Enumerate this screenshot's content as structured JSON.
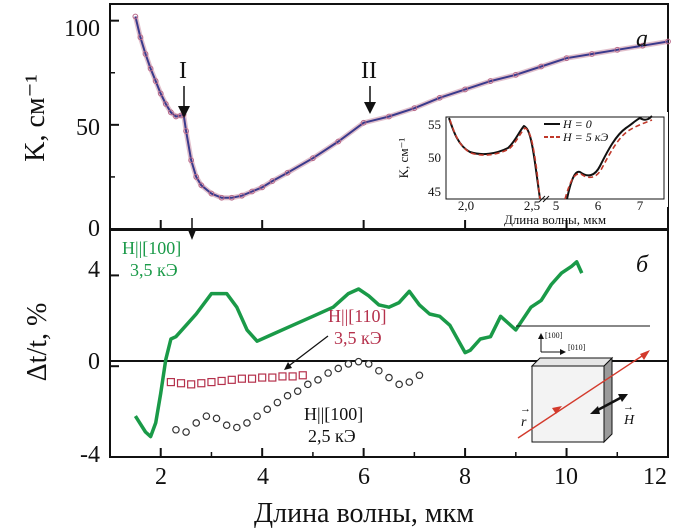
{
  "chart_data": [
    {
      "panel": "a",
      "type": "line",
      "ylabel": "K, см⁻¹",
      "xlim": [
        1,
        12
      ],
      "ylim": [
        0,
        108
      ],
      "yticks": [
        0,
        50,
        100
      ],
      "markers": [
        "I",
        "II"
      ],
      "marker_x": [
        2.45,
        6.05
      ],
      "series": [
        {
          "color": "#3a3a8c",
          "x": [
            1.5,
            1.6,
            1.7,
            1.8,
            1.9,
            2.0,
            2.1,
            2.2,
            2.3,
            2.4,
            2.45,
            2.5,
            2.6,
            2.7,
            2.8,
            3.0,
            3.2,
            3.4,
            3.6,
            3.8,
            4.0,
            4.2,
            4.5,
            5.0,
            5.5,
            6.0,
            6.5,
            7.0,
            7.5,
            8.0,
            8.5,
            9.0,
            9.5,
            10.0,
            10.5,
            11.0,
            11.5,
            12.0
          ],
          "y": [
            102,
            92,
            84,
            77,
            71,
            65,
            60,
            56,
            54,
            54.5,
            55,
            47,
            33,
            25,
            21,
            17,
            15,
            15,
            16,
            18,
            20,
            23,
            27,
            34,
            42,
            51,
            54,
            58,
            63,
            67,
            71,
            74,
            78,
            82,
            84,
            86,
            88,
            90
          ]
        }
      ]
    },
    {
      "panel": "b",
      "type": "line",
      "xlabel": "Длина волны, мкм",
      "ylabel": "Δt/t, %",
      "xlim": [
        1,
        12
      ],
      "ylim": [
        -4,
        6
      ],
      "xticks": [
        2,
        4,
        6,
        8,
        10,
        12
      ],
      "yticks": [
        -4,
        0,
        4
      ],
      "series": [
        {
          "name": "H||[100] 3,5 кЭ",
          "color": "#1a9a48",
          "x": [
            1.5,
            1.7,
            1.8,
            1.9,
            2.0,
            2.1,
            2.2,
            2.3,
            2.5,
            2.7,
            3.0,
            3.3,
            3.5,
            3.7,
            3.9,
            4.2,
            4.6,
            5.0,
            5.4,
            5.7,
            5.9,
            6.1,
            6.3,
            6.5,
            6.7,
            6.9,
            7.1,
            7.3,
            7.5,
            7.7,
            7.9,
            8.0,
            8.1,
            8.3,
            8.5,
            8.7,
            9.0,
            9.3,
            9.5,
            9.7,
            9.9,
            10.1,
            10.2,
            10.3
          ],
          "y": [
            -2.2,
            -2.9,
            -3.1,
            -2.5,
            -1.2,
            0.3,
            1.2,
            1.3,
            1.8,
            2.3,
            3.2,
            3.2,
            2.6,
            1.6,
            1.1,
            1.4,
            1.8,
            2.2,
            2.6,
            3.2,
            3.4,
            3.1,
            2.7,
            2.6,
            2.8,
            3.3,
            2.7,
            2.3,
            2.2,
            1.8,
            1.0,
            0.6,
            0.7,
            1.2,
            1.3,
            2.2,
            1.6,
            2.6,
            2.9,
            3.6,
            4.1,
            4.4,
            4.6,
            4.1
          ]
        },
        {
          "name": "H||[110] 3,5 кЭ",
          "color": "#b5314c",
          "x": [
            2.2,
            2.4,
            2.6,
            2.8,
            3.0,
            3.2,
            3.4,
            3.6,
            3.8,
            4.0,
            4.2,
            4.4,
            4.6,
            4.8
          ],
          "y": [
            -0.7,
            -0.75,
            -0.8,
            -0.75,
            -0.7,
            -0.65,
            -0.6,
            -0.55,
            -0.55,
            -0.5,
            -0.5,
            -0.45,
            -0.45,
            -0.4
          ]
        },
        {
          "name": "H||[100] 2,5 кЭ",
          "color": "#333333",
          "x": [
            2.3,
            2.5,
            2.7,
            2.9,
            3.1,
            3.3,
            3.5,
            3.7,
            3.9,
            4.1,
            4.3,
            4.5,
            4.7,
            4.9,
            5.1,
            5.3,
            5.5,
            5.7,
            5.9,
            6.1,
            6.3,
            6.5,
            6.7,
            6.9,
            7.1
          ],
          "y": [
            -2.8,
            -2.9,
            -2.5,
            -2.2,
            -2.3,
            -2.6,
            -2.7,
            -2.5,
            -2.2,
            -1.9,
            -1.6,
            -1.3,
            -1.1,
            -0.8,
            -0.6,
            -0.3,
            -0.1,
            0.1,
            0.2,
            0.1,
            -0.2,
            -0.5,
            -0.8,
            -0.7,
            -0.4
          ]
        }
      ]
    },
    {
      "panel": "inset",
      "type": "line",
      "xlabel": "Длина волны, мкм",
      "ylabel": "K, см⁻¹",
      "ylim": [
        44,
        57
      ],
      "yticks": [
        45,
        50,
        55
      ],
      "tick_labels": [
        "2,0",
        "2,5",
        "5",
        "6",
        "7"
      ],
      "series": [
        {
          "name": "H = 0",
          "color": "#111111"
        },
        {
          "name": "H = 5 кЭ",
          "color": "#c0392b"
        }
      ]
    }
  ],
  "panel_a": {
    "letter": "a",
    "marker_I": "I",
    "marker_II": "II"
  },
  "panel_b": {
    "letter": "б"
  },
  "annotations": {
    "green_line1": "H||[100]",
    "green_line2": "3,5 кЭ",
    "red_line1": "H||[110]",
    "red_line2": "3,5 кЭ",
    "black_line1": "H||[100]",
    "black_line2": "2,5 кЭ"
  },
  "schematic": {
    "dir1": "[100]",
    "dir2": "[010]",
    "r_label": "r",
    "h_label": "H"
  },
  "inset_legend": {
    "h0": "H = 0",
    "h5": "H = 5 кЭ"
  }
}
